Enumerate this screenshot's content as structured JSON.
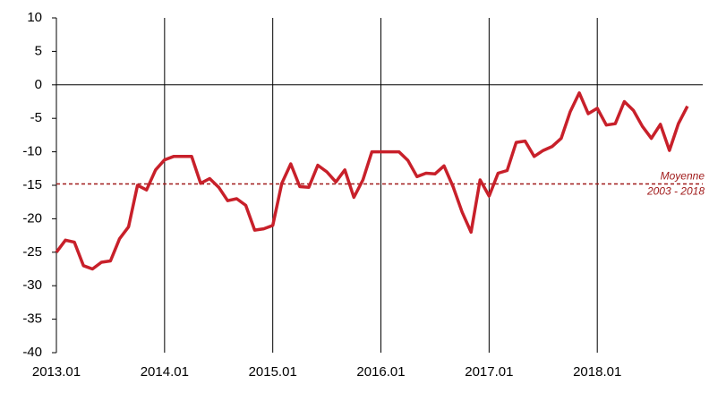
{
  "chart_data": {
    "type": "line",
    "categories": [
      "2013.01",
      null,
      null,
      null,
      null,
      null,
      null,
      null,
      null,
      null,
      null,
      null,
      "2014.01",
      null,
      null,
      null,
      null,
      null,
      null,
      null,
      null,
      null,
      null,
      null,
      "2015.01",
      null,
      null,
      null,
      null,
      null,
      null,
      null,
      null,
      null,
      null,
      null,
      "2016.01",
      null,
      null,
      null,
      null,
      null,
      null,
      null,
      null,
      null,
      null,
      null,
      "2017.01",
      null,
      null,
      null,
      null,
      null,
      null,
      null,
      null,
      null,
      null,
      null,
      "2018.01",
      null,
      null,
      null,
      null,
      null,
      null,
      null,
      null,
      null,
      null
    ],
    "values": [
      -25,
      -23.2,
      -23.5,
      -27,
      -27.5,
      -26.5,
      -26.3,
      -23,
      -21.2,
      -15,
      -15.7,
      -12.7,
      -11.2,
      -10.7,
      -10.7,
      -10.7,
      -14.7,
      -14,
      -15.3,
      -17.3,
      -17,
      -18,
      -21.7,
      -21.5,
      -21,
      -14.7,
      -11.8,
      -15.2,
      -15.3,
      -12,
      -13,
      -14.5,
      -12.7,
      -16.8,
      -14.2,
      -10,
      -10,
      -10,
      -10,
      -11.3,
      -13.7,
      -13.2,
      -13.3,
      -12.1,
      -15.2,
      -19,
      -22,
      -14.2,
      -16.6,
      -13.2,
      -12.8,
      -8.6,
      -8.4,
      -10.7,
      -9.8,
      -9.2,
      -8,
      -4,
      -1.2,
      -4.3,
      -3.5,
      -6,
      -5.8,
      -2.5,
      -3.8,
      -6.2,
      -8,
      -5.9,
      -9.8,
      -5.8,
      -3.2
    ],
    "color": "#c8202a",
    "ylim": [
      -40,
      10
    ],
    "yticks": [
      -40,
      -35,
      -30,
      -25,
      -20,
      -15,
      -10,
      -5,
      0,
      5,
      10
    ],
    "average": {
      "value": -14.8,
      "label_lines": [
        "Moyenne",
        "2003 - 2018"
      ],
      "color": "#a01a1a"
    }
  }
}
